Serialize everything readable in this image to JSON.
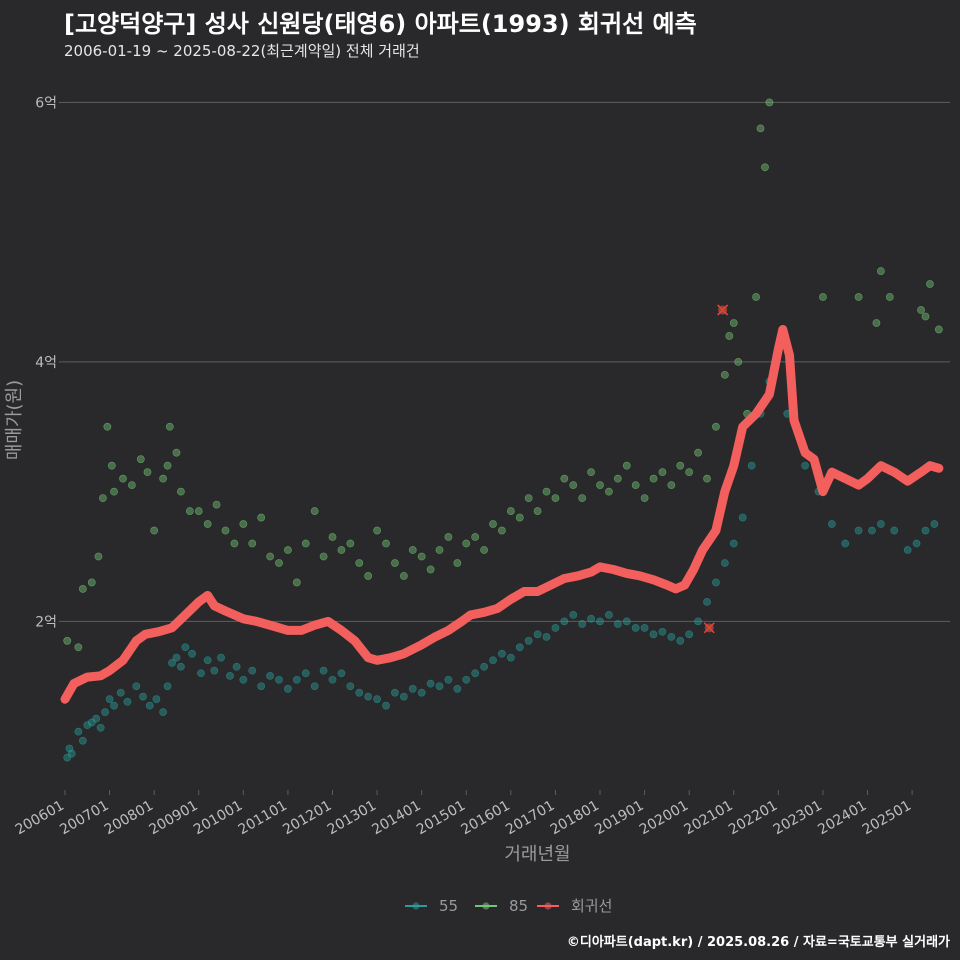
{
  "title": "[고양덕양구] 성사 신원당(태영6) 아파트(1993) 회귀선 예측",
  "subtitle": "2006-01-19 ~ 2025-08-22(최근계약일) 전체 거래건",
  "caption": "©디아파트(dapt.kr) / 2025.08.26 / 자료=국토교통부 실거래가",
  "colors": {
    "background": "#29282a",
    "grid": "#5e5e5e",
    "series_55": "#2a9d9a",
    "series_85": "#74c476",
    "regression": "#f25f5c",
    "highlight": "#e8412f"
  },
  "chart_data": {
    "type": "scatter",
    "title": "[고양덕양구] 성사 신원당(태영6) 아파트(1993) 회귀선 예측",
    "xlabel": "거래년월",
    "ylabel": "매매가(원)",
    "xlim": [
      2006.0,
      2025.85
    ],
    "ylim": [
      0.7,
      6.25
    ],
    "y_unit": "억",
    "yticks": [
      {
        "value": 2,
        "label": "2억"
      },
      {
        "value": 4,
        "label": "4억"
      },
      {
        "value": 6,
        "label": "6억"
      }
    ],
    "xticks": [
      {
        "value": 2006,
        "label": "200601"
      },
      {
        "value": 2007,
        "label": "200701"
      },
      {
        "value": 2008,
        "label": "200801"
      },
      {
        "value": 2009,
        "label": "200901"
      },
      {
        "value": 2010,
        "label": "201001"
      },
      {
        "value": 2011,
        "label": "201101"
      },
      {
        "value": 2012,
        "label": "201201"
      },
      {
        "value": 2013,
        "label": "201301"
      },
      {
        "value": 2014,
        "label": "201401"
      },
      {
        "value": 2015,
        "label": "201501"
      },
      {
        "value": 2016,
        "label": "201601"
      },
      {
        "value": 2017,
        "label": "201701"
      },
      {
        "value": 2018,
        "label": "201801"
      },
      {
        "value": 2019,
        "label": "201901"
      },
      {
        "value": 2020,
        "label": "202001"
      },
      {
        "value": 2021,
        "label": "202101"
      },
      {
        "value": 2022,
        "label": "202201"
      },
      {
        "value": 2023,
        "label": "202301"
      },
      {
        "value": 2024,
        "label": "202401"
      },
      {
        "value": 2025,
        "label": "202501"
      }
    ],
    "legend": [
      {
        "name": "55",
        "color": "#2a9d9a"
      },
      {
        "name": "85",
        "color": "#74c476"
      },
      {
        "name": "회귀선",
        "color": "#f25f5c"
      }
    ],
    "series": [
      {
        "name": "55",
        "points": [
          [
            2006.05,
            0.95
          ],
          [
            2006.1,
            1.02
          ],
          [
            2006.15,
            0.98
          ],
          [
            2006.3,
            1.15
          ],
          [
            2006.4,
            1.08
          ],
          [
            2006.5,
            1.2
          ],
          [
            2006.6,
            1.22
          ],
          [
            2006.7,
            1.25
          ],
          [
            2006.8,
            1.18
          ],
          [
            2006.9,
            1.3
          ],
          [
            2007.0,
            1.4
          ],
          [
            2007.1,
            1.35
          ],
          [
            2007.25,
            1.45
          ],
          [
            2007.4,
            1.38
          ],
          [
            2007.6,
            1.5
          ],
          [
            2007.75,
            1.42
          ],
          [
            2007.9,
            1.35
          ],
          [
            2008.05,
            1.4
          ],
          [
            2008.2,
            1.3
          ],
          [
            2008.3,
            1.5
          ],
          [
            2008.4,
            1.68
          ],
          [
            2008.5,
            1.72
          ],
          [
            2008.6,
            1.65
          ],
          [
            2008.7,
            1.8
          ],
          [
            2008.85,
            1.75
          ],
          [
            2009.05,
            1.6
          ],
          [
            2009.2,
            1.7
          ],
          [
            2009.35,
            1.62
          ],
          [
            2009.5,
            1.72
          ],
          [
            2009.7,
            1.58
          ],
          [
            2009.85,
            1.65
          ],
          [
            2010.0,
            1.55
          ],
          [
            2010.2,
            1.62
          ],
          [
            2010.4,
            1.5
          ],
          [
            2010.6,
            1.58
          ],
          [
            2010.8,
            1.55
          ],
          [
            2011.0,
            1.48
          ],
          [
            2011.2,
            1.55
          ],
          [
            2011.4,
            1.6
          ],
          [
            2011.6,
            1.5
          ],
          [
            2011.8,
            1.62
          ],
          [
            2012.0,
            1.55
          ],
          [
            2012.2,
            1.6
          ],
          [
            2012.4,
            1.5
          ],
          [
            2012.6,
            1.45
          ],
          [
            2012.8,
            1.42
          ],
          [
            2013.0,
            1.4
          ],
          [
            2013.2,
            1.35
          ],
          [
            2013.4,
            1.45
          ],
          [
            2013.6,
            1.42
          ],
          [
            2013.8,
            1.48
          ],
          [
            2014.0,
            1.45
          ],
          [
            2014.2,
            1.52
          ],
          [
            2014.4,
            1.5
          ],
          [
            2014.6,
            1.55
          ],
          [
            2014.8,
            1.48
          ],
          [
            2015.0,
            1.55
          ],
          [
            2015.2,
            1.6
          ],
          [
            2015.4,
            1.65
          ],
          [
            2015.6,
            1.7
          ],
          [
            2015.8,
            1.75
          ],
          [
            2016.0,
            1.72
          ],
          [
            2016.2,
            1.8
          ],
          [
            2016.4,
            1.85
          ],
          [
            2016.6,
            1.9
          ],
          [
            2016.8,
            1.88
          ],
          [
            2017.0,
            1.95
          ],
          [
            2017.2,
            2.0
          ],
          [
            2017.4,
            2.05
          ],
          [
            2017.6,
            1.98
          ],
          [
            2017.8,
            2.02
          ],
          [
            2018.0,
            2.0
          ],
          [
            2018.2,
            2.05
          ],
          [
            2018.4,
            1.98
          ],
          [
            2018.6,
            2.0
          ],
          [
            2018.8,
            1.95
          ],
          [
            2019.0,
            1.95
          ],
          [
            2019.2,
            1.9
          ],
          [
            2019.4,
            1.92
          ],
          [
            2019.6,
            1.88
          ],
          [
            2019.8,
            1.85
          ],
          [
            2020.0,
            1.9
          ],
          [
            2020.2,
            2.0
          ],
          [
            2020.4,
            2.15
          ],
          [
            2020.6,
            2.3
          ],
          [
            2020.8,
            2.45
          ],
          [
            2021.0,
            2.6
          ],
          [
            2021.2,
            2.8
          ],
          [
            2021.4,
            3.2
          ],
          [
            2021.6,
            3.6
          ],
          [
            2021.8,
            3.85
          ],
          [
            2022.2,
            3.6
          ],
          [
            2022.6,
            3.2
          ],
          [
            2022.9,
            3.0
          ],
          [
            2023.2,
            2.75
          ],
          [
            2023.5,
            2.6
          ],
          [
            2023.8,
            2.7
          ],
          [
            2024.1,
            2.7
          ],
          [
            2024.3,
            2.75
          ],
          [
            2024.6,
            2.7
          ],
          [
            2024.9,
            2.55
          ],
          [
            2025.1,
            2.6
          ],
          [
            2025.3,
            2.7
          ],
          [
            2025.5,
            2.75
          ]
        ]
      },
      {
        "name": "85",
        "points": [
          [
            2006.05,
            1.85
          ],
          [
            2006.3,
            1.8
          ],
          [
            2006.4,
            2.25
          ],
          [
            2006.6,
            2.3
          ],
          [
            2006.75,
            2.5
          ],
          [
            2006.85,
            2.95
          ],
          [
            2006.95,
            3.5
          ],
          [
            2007.05,
            3.2
          ],
          [
            2007.1,
            3.0
          ],
          [
            2007.3,
            3.1
          ],
          [
            2007.5,
            3.05
          ],
          [
            2007.7,
            3.25
          ],
          [
            2007.85,
            3.15
          ],
          [
            2008.0,
            2.7
          ],
          [
            2008.2,
            3.1
          ],
          [
            2008.3,
            3.2
          ],
          [
            2008.35,
            3.5
          ],
          [
            2008.5,
            3.3
          ],
          [
            2008.6,
            3.0
          ],
          [
            2008.8,
            2.85
          ],
          [
            2009.0,
            2.85
          ],
          [
            2009.2,
            2.75
          ],
          [
            2009.4,
            2.9
          ],
          [
            2009.6,
            2.7
          ],
          [
            2009.8,
            2.6
          ],
          [
            2010.0,
            2.75
          ],
          [
            2010.2,
            2.6
          ],
          [
            2010.4,
            2.8
          ],
          [
            2010.6,
            2.5
          ],
          [
            2010.8,
            2.45
          ],
          [
            2011.0,
            2.55
          ],
          [
            2011.2,
            2.3
          ],
          [
            2011.4,
            2.6
          ],
          [
            2011.6,
            2.85
          ],
          [
            2011.8,
            2.5
          ],
          [
            2012.0,
            2.65
          ],
          [
            2012.2,
            2.55
          ],
          [
            2012.4,
            2.6
          ],
          [
            2012.6,
            2.45
          ],
          [
            2012.8,
            2.35
          ],
          [
            2013.0,
            2.7
          ],
          [
            2013.2,
            2.6
          ],
          [
            2013.4,
            2.45
          ],
          [
            2013.6,
            2.35
          ],
          [
            2013.8,
            2.55
          ],
          [
            2014.0,
            2.5
          ],
          [
            2014.2,
            2.4
          ],
          [
            2014.4,
            2.55
          ],
          [
            2014.6,
            2.65
          ],
          [
            2014.8,
            2.45
          ],
          [
            2015.0,
            2.6
          ],
          [
            2015.2,
            2.65
          ],
          [
            2015.4,
            2.55
          ],
          [
            2015.6,
            2.75
          ],
          [
            2015.8,
            2.7
          ],
          [
            2016.0,
            2.85
          ],
          [
            2016.2,
            2.8
          ],
          [
            2016.4,
            2.95
          ],
          [
            2016.6,
            2.85
          ],
          [
            2016.8,
            3.0
          ],
          [
            2017.0,
            2.95
          ],
          [
            2017.2,
            3.1
          ],
          [
            2017.4,
            3.05
          ],
          [
            2017.6,
            2.95
          ],
          [
            2017.8,
            3.15
          ],
          [
            2018.0,
            3.05
          ],
          [
            2018.2,
            3.0
          ],
          [
            2018.4,
            3.1
          ],
          [
            2018.6,
            3.2
          ],
          [
            2018.8,
            3.05
          ],
          [
            2019.0,
            2.95
          ],
          [
            2019.2,
            3.1
          ],
          [
            2019.4,
            3.15
          ],
          [
            2019.6,
            3.05
          ],
          [
            2019.8,
            3.2
          ],
          [
            2020.0,
            3.15
          ],
          [
            2020.2,
            3.3
          ],
          [
            2020.4,
            3.1
          ],
          [
            2020.6,
            3.5
          ],
          [
            2020.8,
            3.9
          ],
          [
            2020.9,
            4.2
          ],
          [
            2021.0,
            4.3
          ],
          [
            2021.1,
            4.0
          ],
          [
            2021.3,
            3.6
          ],
          [
            2021.5,
            4.5
          ],
          [
            2021.6,
            5.8
          ],
          [
            2021.7,
            5.5
          ],
          [
            2021.8,
            6.0
          ],
          [
            2023.0,
            4.5
          ],
          [
            2023.8,
            4.5
          ],
          [
            2024.2,
            4.3
          ],
          [
            2024.3,
            4.7
          ],
          [
            2024.5,
            4.5
          ],
          [
            2025.2,
            4.4
          ],
          [
            2025.3,
            4.35
          ],
          [
            2025.4,
            4.6
          ],
          [
            2025.6,
            4.25
          ]
        ]
      },
      {
        "name": "회귀선",
        "points": [
          [
            2006.0,
            1.4
          ],
          [
            2006.2,
            1.52
          ],
          [
            2006.5,
            1.57
          ],
          [
            2006.8,
            1.58
          ],
          [
            2007.0,
            1.62
          ],
          [
            2007.3,
            1.7
          ],
          [
            2007.6,
            1.85
          ],
          [
            2007.8,
            1.9
          ],
          [
            2008.1,
            1.92
          ],
          [
            2008.4,
            1.95
          ],
          [
            2008.7,
            2.05
          ],
          [
            2009.0,
            2.15
          ],
          [
            2009.2,
            2.2
          ],
          [
            2009.35,
            2.12
          ],
          [
            2009.6,
            2.08
          ],
          [
            2010.0,
            2.02
          ],
          [
            2010.3,
            2.0
          ],
          [
            2010.7,
            1.96
          ],
          [
            2011.0,
            1.93
          ],
          [
            2011.3,
            1.93
          ],
          [
            2011.6,
            1.97
          ],
          [
            2011.9,
            2.0
          ],
          [
            2012.2,
            1.93
          ],
          [
            2012.5,
            1.85
          ],
          [
            2012.8,
            1.72
          ],
          [
            2013.0,
            1.7
          ],
          [
            2013.3,
            1.72
          ],
          [
            2013.6,
            1.75
          ],
          [
            2014.0,
            1.82
          ],
          [
            2014.3,
            1.88
          ],
          [
            2014.6,
            1.93
          ],
          [
            2014.9,
            2.0
          ],
          [
            2015.1,
            2.05
          ],
          [
            2015.4,
            2.07
          ],
          [
            2015.7,
            2.1
          ],
          [
            2016.0,
            2.17
          ],
          [
            2016.3,
            2.23
          ],
          [
            2016.6,
            2.23
          ],
          [
            2016.9,
            2.28
          ],
          [
            2017.2,
            2.33
          ],
          [
            2017.5,
            2.35
          ],
          [
            2017.8,
            2.38
          ],
          [
            2018.0,
            2.42
          ],
          [
            2018.3,
            2.4
          ],
          [
            2018.6,
            2.37
          ],
          [
            2018.9,
            2.35
          ],
          [
            2019.2,
            2.32
          ],
          [
            2019.5,
            2.28
          ],
          [
            2019.7,
            2.25
          ],
          [
            2019.9,
            2.28
          ],
          [
            2020.1,
            2.4
          ],
          [
            2020.3,
            2.55
          ],
          [
            2020.6,
            2.7
          ],
          [
            2020.8,
            3.0
          ],
          [
            2021.0,
            3.2
          ],
          [
            2021.2,
            3.5
          ],
          [
            2021.5,
            3.6
          ],
          [
            2021.8,
            3.75
          ],
          [
            2022.0,
            4.1
          ],
          [
            2022.1,
            4.25
          ],
          [
            2022.25,
            4.05
          ],
          [
            2022.35,
            3.55
          ],
          [
            2022.6,
            3.3
          ],
          [
            2022.8,
            3.25
          ],
          [
            2023.0,
            3.0
          ],
          [
            2023.2,
            3.15
          ],
          [
            2023.5,
            3.1
          ],
          [
            2023.8,
            3.05
          ],
          [
            2024.0,
            3.1
          ],
          [
            2024.3,
            3.2
          ],
          [
            2024.6,
            3.15
          ],
          [
            2024.9,
            3.08
          ],
          [
            2025.2,
            3.15
          ],
          [
            2025.4,
            3.2
          ],
          [
            2025.6,
            3.18
          ]
        ]
      }
    ],
    "highlight_points": [
      [
        2020.75,
        4.4
      ],
      [
        2020.45,
        1.95
      ]
    ]
  }
}
